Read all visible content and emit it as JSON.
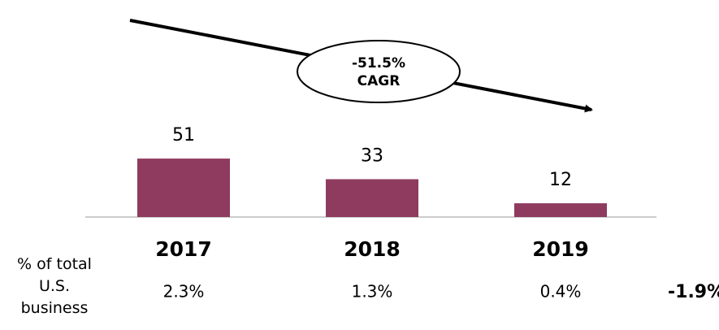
{
  "chart_data": {
    "type": "bar",
    "categories": [
      "2017",
      "2018",
      "2019"
    ],
    "values": [
      51,
      33,
      12
    ],
    "color": "#8e3b5f",
    "annotation": "-51.5% CAGR",
    "row_label": "% of total U.S. business",
    "row_values": [
      "2.3%",
      "1.3%",
      "0.4%"
    ],
    "row_change": "-1.9%"
  }
}
